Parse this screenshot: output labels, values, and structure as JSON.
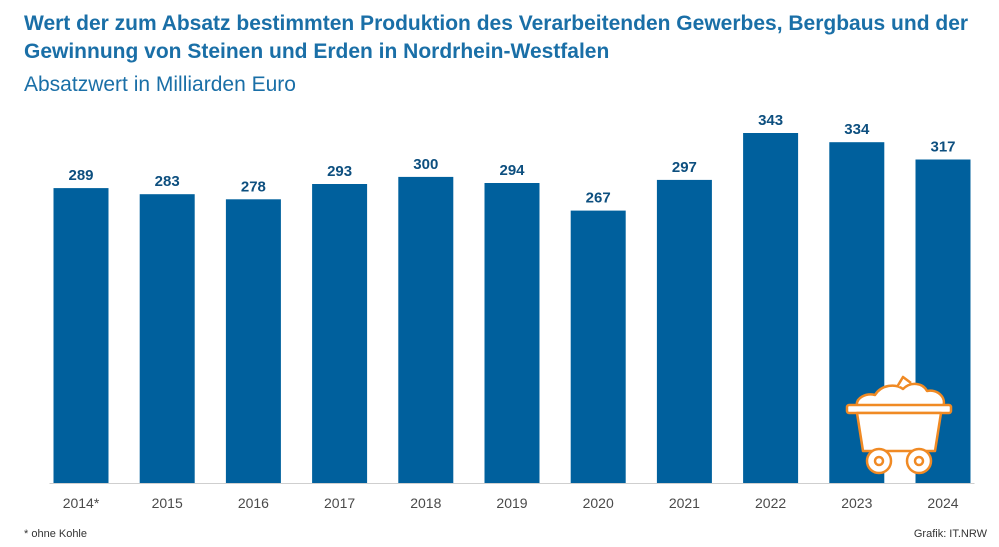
{
  "header": {
    "title": "Wert der zum Absatz bestimmten Produktion des Verarbeitenden Gewerbes, Bergbaus und der Gewinnung von Steinen und Erden in Nordrhein-Westfalen",
    "subtitle": "Absatzwert in Milliarden Euro"
  },
  "footer": {
    "footnote": "* ohne Kohle",
    "source": "Grafik: IT.NRW"
  },
  "colors": {
    "bar": "#00609d",
    "title": "#1a6fa7",
    "label": "#0d4f7f",
    "axis_text": "#4a4a4a",
    "icon": "#f08a24"
  },
  "icon": "mine-cart-icon",
  "chart_data": {
    "type": "bar",
    "categories": [
      "2014*",
      "2015",
      "2016",
      "2017",
      "2018",
      "2019",
      "2020",
      "2021",
      "2022",
      "2023",
      "2024"
    ],
    "values": [
      289,
      283,
      278,
      293,
      300,
      294,
      267,
      297,
      343,
      334,
      317
    ],
    "ylim": [
      0,
      343
    ],
    "grid": false,
    "legend": "none"
  }
}
